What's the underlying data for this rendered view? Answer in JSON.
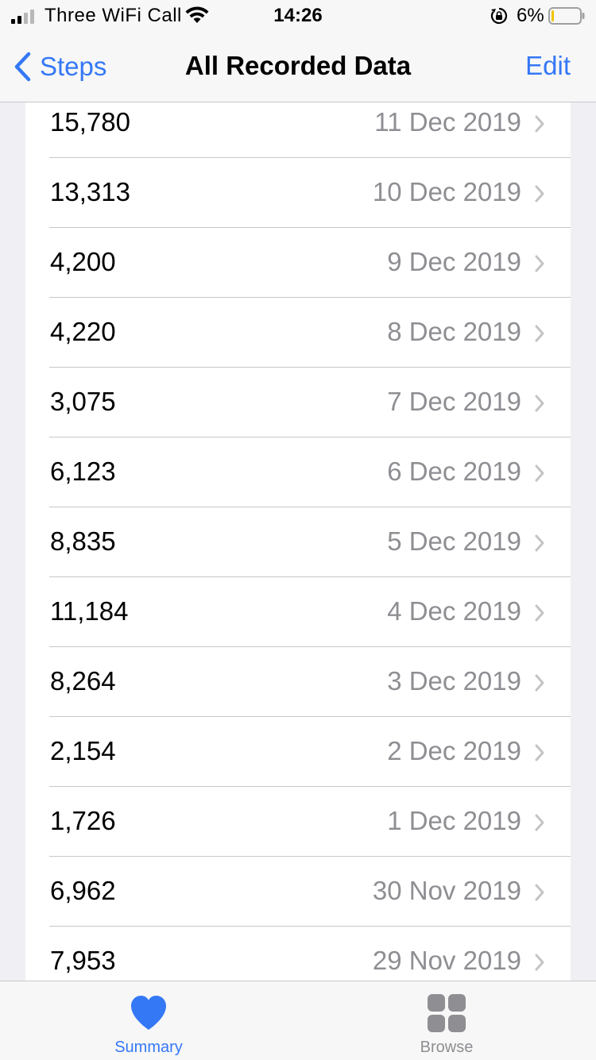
{
  "status_bar": {
    "carrier": "Three WiFi Call",
    "time": "14:26",
    "battery_percent": "6%",
    "battery_level": 0.06,
    "signal_bars": 2,
    "icons": [
      "signal-icon",
      "wifi-icon",
      "rotation-lock-icon",
      "battery-icon"
    ]
  },
  "nav": {
    "back_label": "Steps",
    "title": "All Recorded Data",
    "edit_label": "Edit"
  },
  "records": [
    {
      "value": "15,780",
      "date": "11 Dec 2019"
    },
    {
      "value": "13,313",
      "date": "10 Dec 2019"
    },
    {
      "value": "4,200",
      "date": "9 Dec 2019"
    },
    {
      "value": "4,220",
      "date": "8 Dec 2019"
    },
    {
      "value": "3,075",
      "date": "7 Dec 2019"
    },
    {
      "value": "6,123",
      "date": "6 Dec 2019"
    },
    {
      "value": "8,835",
      "date": "5 Dec 2019"
    },
    {
      "value": "11,184",
      "date": "4 Dec 2019"
    },
    {
      "value": "8,264",
      "date": "3 Dec 2019"
    },
    {
      "value": "2,154",
      "date": "2 Dec 2019"
    },
    {
      "value": "1,726",
      "date": "1 Dec 2019"
    },
    {
      "value": "6,962",
      "date": "30 Nov 2019"
    },
    {
      "value": "7,953",
      "date": "29 Nov 2019"
    }
  ],
  "tabs": [
    {
      "label": "Summary",
      "icon": "heart-icon",
      "active": true
    },
    {
      "label": "Browse",
      "icon": "grid-icon",
      "active": false
    }
  ],
  "colors": {
    "accent": "#3478f6",
    "secondary_text": "#8e8e93",
    "inactive_tab": "#8e8e93",
    "background": "#efeff4",
    "separator": "#c8c7cc",
    "battery_low": "#f2c200"
  }
}
